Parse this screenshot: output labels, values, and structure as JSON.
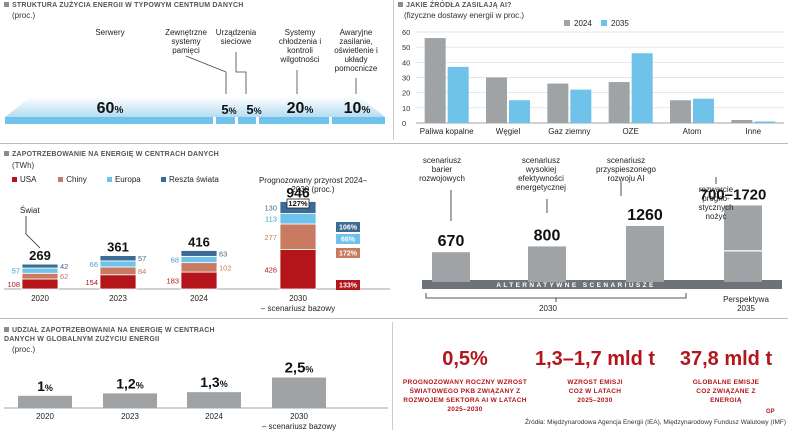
{
  "colors": {
    "gray": "#a0a3a6",
    "blue": "#6fc3ea",
    "red": "#b3151b",
    "chiny": "#c97b62",
    "europa": "#6fc3ea",
    "reszta": "#3c6b96",
    "light_blue": "#c8e7f5",
    "highlight_red": "#b3151b"
  },
  "panel_a": {
    "title": "Struktura zużycia energii w typowym centrum danych",
    "unit": "(proc.)",
    "items": [
      {
        "label": "Serwery",
        "value": "60",
        "suffix": "%"
      },
      {
        "label": "Zewnętrzne systemy pamięci",
        "value": "5",
        "suffix": "%"
      },
      {
        "label": "Urządzenia sieciowe",
        "value": "5",
        "suffix": "%"
      },
      {
        "label": "Systemy chłodzenia i kontroli wilgotności",
        "value": "20",
        "suffix": "%"
      },
      {
        "label": "Awaryjne zasilanie, oświetlenie i układy pomocnicze",
        "value": "10",
        "suffix": "%"
      }
    ]
  },
  "panel_b": {
    "title": "Jakie źródła zasilają AI?",
    "unit": "(fizyczne dostawy energii w proc.)",
    "legend": [
      "2024",
      "2035"
    ],
    "chart_data": {
      "type": "bar",
      "categories": [
        "Paliwa kopalne",
        "Węgiel",
        "Gaz ziemny",
        "OZE",
        "Atom",
        "Inne"
      ],
      "series": [
        {
          "name": "2024",
          "values": [
            56,
            30,
            26,
            27,
            15,
            2
          ]
        },
        {
          "name": "2035",
          "values": [
            37,
            15,
            22,
            46,
            16,
            1
          ]
        }
      ],
      "yticks": [
        "0",
        "10",
        "20",
        "30",
        "40",
        "50",
        "60"
      ],
      "ylim": [
        0,
        60
      ]
    }
  },
  "panel_c": {
    "title": "Zapotrzebowanie na energię w centrach danych",
    "unit": "(TWh)",
    "legend": [
      "USA",
      "Chiny",
      "Europa",
      "Reszta świata"
    ],
    "world_label": "Świat",
    "growth_title": "Prognozowany przyrost 2024–2030 (proc.)",
    "growth_total": "127%",
    "growth": [
      "106%",
      "66%",
      "172%",
      "133%"
    ],
    "chart_data": {
      "type": "stacked_bar",
      "categories": [
        "2020",
        "2023",
        "2024",
        "2030 – scenariusz bazowy"
      ],
      "totals": [
        "269",
        "361",
        "416",
        "946"
      ],
      "series": [
        {
          "name": "USA",
          "values": [
            "108",
            "154",
            "183",
            "426"
          ]
        },
        {
          "name": "Chiny",
          "values": [
            "62",
            "84",
            "102",
            "277"
          ]
        },
        {
          "name": "Europa",
          "values": [
            "57",
            "66",
            "68",
            "113"
          ]
        },
        {
          "name": "Reszta świata",
          "values": [
            "42",
            "57",
            "63",
            "130"
          ]
        }
      ]
    }
  },
  "panel_d": {
    "band_label": "ALTERNATYWNE SCENARIUSZE",
    "x_labels": [
      "2030",
      "Perspektywa 2035"
    ],
    "chart_data": {
      "type": "bar",
      "categories": [
        "scenariusz barier rozwojowych",
        "scenariusz wysokiej efektywności energetycznej",
        "scenariusz przyspieszonego rozwoju AI",
        "rozwarcie prognostycznych nożyc"
      ],
      "values": [
        "670",
        "800",
        "1260",
        "700–1720"
      ]
    }
  },
  "panel_e": {
    "title": "Udział zapotrzebowania na energię w centrach danych w globalnym zużyciu energii",
    "unit": "(proc.)",
    "chart_data": {
      "type": "bar",
      "categories": [
        "2020",
        "2023",
        "2024",
        "2030 – scenariusz bazowy"
      ],
      "values": [
        1,
        1.2,
        1.3,
        2.5
      ],
      "display": [
        "1",
        "1,2",
        "1,3",
        "2,5"
      ],
      "suffix": "%"
    }
  },
  "stats": [
    {
      "value": "0,5%",
      "label": "Prognozowany roczny wzrost światowego PKB związany z rozwojem sektora AI w latach 2025–2030"
    },
    {
      "value": "1,3–1,7 mld t",
      "label": "Wzrost emisji CO2 w latach 2025–2030"
    },
    {
      "value": "37,8 mld t",
      "label": "Globalne emisje CO2 związane z energią"
    }
  ],
  "source": "Źródła: Międzynarodowa Agencja Energii (IEA), Międzynarodowy Fundusz Walutowy (IMF)",
  "logo": "GP"
}
